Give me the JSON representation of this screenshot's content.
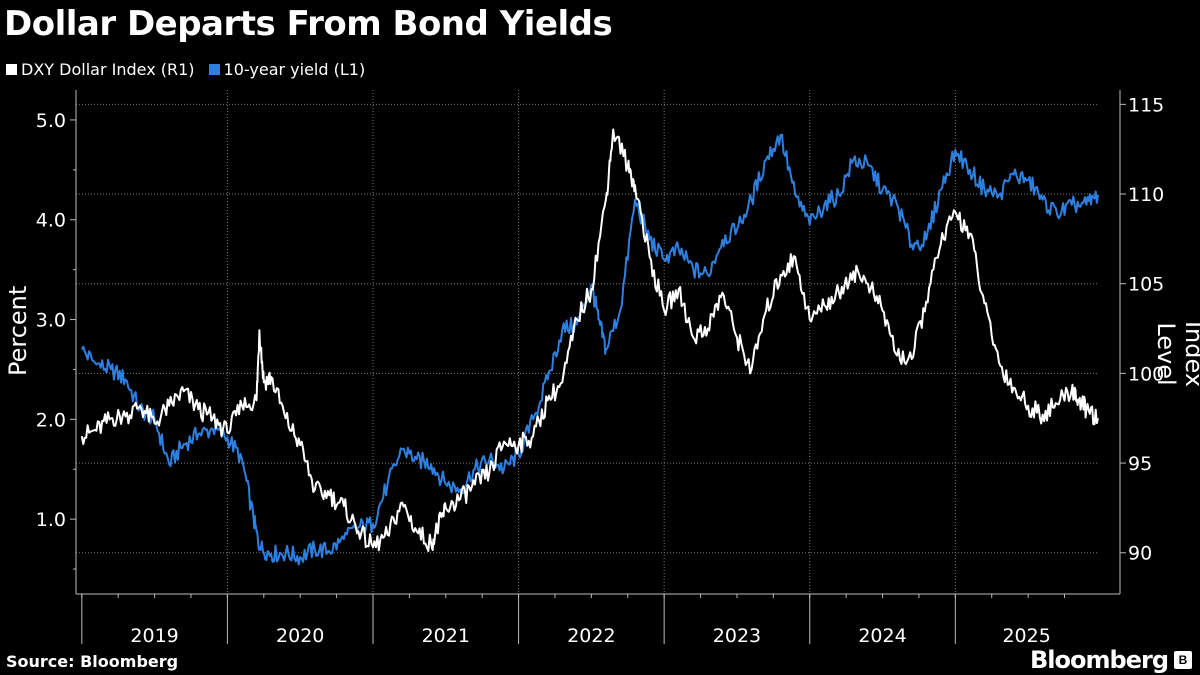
{
  "title": "Dollar Departs From Bond Yields",
  "legend": [
    {
      "label": "DXY Dollar Index (R1)",
      "color": "#ffffff"
    },
    {
      "label": "10-year yield (L1)",
      "color": "#2d7fe0"
    }
  ],
  "source": "Source: Bloomberg",
  "brand": "Bloomberg",
  "chart_data": {
    "type": "line",
    "title": "Dollar Departs From Bond Yields",
    "ylabel_left": "Percent",
    "ylabel_right": "Index Level",
    "ylim_left": [
      0.25,
      5.3
    ],
    "ylim_right": [
      87.7,
      115.8
    ],
    "yticks_left": [
      "1.0",
      "2.0",
      "3.0",
      "4.0",
      "5.0"
    ],
    "yticks_right": [
      "90",
      "95",
      "100",
      "105",
      "110",
      "115"
    ],
    "year_labels": [
      "2019",
      "2020",
      "2021",
      "2022",
      "2023",
      "2024",
      "2025"
    ],
    "x_domain": [
      2018.96,
      2025.98
    ],
    "year_boundaries": [
      2020,
      2021,
      2022,
      2023,
      2024,
      2025
    ],
    "series": [
      {
        "name": "10-year yield (L1)",
        "axis": "left",
        "color": "#2d7fe0",
        "x": [
          2019.0,
          2019.1,
          2019.2,
          2019.3,
          2019.4,
          2019.5,
          2019.6,
          2019.7,
          2019.8,
          2019.9,
          2020.0,
          2020.1,
          2020.18,
          2020.22,
          2020.3,
          2020.4,
          2020.5,
          2020.6,
          2020.7,
          2020.8,
          2020.9,
          2021.0,
          2021.1,
          2021.2,
          2021.3,
          2021.4,
          2021.5,
          2021.6,
          2021.7,
          2021.8,
          2021.9,
          2022.0,
          2022.1,
          2022.2,
          2022.3,
          2022.4,
          2022.5,
          2022.55,
          2022.6,
          2022.7,
          2022.8,
          2022.9,
          2023.0,
          2023.1,
          2023.2,
          2023.3,
          2023.4,
          2023.5,
          2023.6,
          2023.7,
          2023.8,
          2023.9,
          2024.0,
          2024.1,
          2024.2,
          2024.3,
          2024.4,
          2024.5,
          2024.6,
          2024.7,
          2024.8,
          2024.9,
          2025.0,
          2025.1,
          2025.2,
          2025.3,
          2025.4,
          2025.5,
          2025.6,
          2025.7,
          2025.8,
          2025.9,
          2025.98
        ],
        "values": [
          2.7,
          2.55,
          2.5,
          2.4,
          2.1,
          2.0,
          1.55,
          1.75,
          1.85,
          1.9,
          1.82,
          1.6,
          1.0,
          0.72,
          0.65,
          0.66,
          0.62,
          0.7,
          0.68,
          0.8,
          0.92,
          0.95,
          1.35,
          1.7,
          1.6,
          1.55,
          1.35,
          1.3,
          1.5,
          1.6,
          1.5,
          1.65,
          2.0,
          2.4,
          2.9,
          2.95,
          3.35,
          3.0,
          2.7,
          3.1,
          4.2,
          3.8,
          3.6,
          3.7,
          3.5,
          3.45,
          3.8,
          3.9,
          4.2,
          4.6,
          4.85,
          4.25,
          3.95,
          4.15,
          4.25,
          4.6,
          4.55,
          4.3,
          4.15,
          3.75,
          3.8,
          4.3,
          4.7,
          4.5,
          4.3,
          4.25,
          4.45,
          4.4,
          4.2,
          4.05,
          4.15,
          4.15,
          4.25
        ]
      },
      {
        "name": "DXY Dollar Index (R1)",
        "axis": "right",
        "color": "#ffffff",
        "x": [
          2019.0,
          2019.1,
          2019.2,
          2019.3,
          2019.4,
          2019.5,
          2019.6,
          2019.7,
          2019.8,
          2019.9,
          2020.0,
          2020.1,
          2020.2,
          2020.22,
          2020.25,
          2020.3,
          2020.4,
          2020.5,
          2020.6,
          2020.7,
          2020.8,
          2020.9,
          2021.0,
          2021.1,
          2021.2,
          2021.3,
          2021.4,
          2021.45,
          2021.5,
          2021.6,
          2021.7,
          2021.8,
          2021.9,
          2022.0,
          2022.1,
          2022.2,
          2022.3,
          2022.4,
          2022.5,
          2022.6,
          2022.65,
          2022.75,
          2022.8,
          2022.9,
          2023.0,
          2023.1,
          2023.2,
          2023.3,
          2023.4,
          2023.5,
          2023.6,
          2023.7,
          2023.8,
          2023.9,
          2024.0,
          2024.1,
          2024.2,
          2024.3,
          2024.4,
          2024.5,
          2024.6,
          2024.7,
          2024.8,
          2024.9,
          2025.0,
          2025.1,
          2025.2,
          2025.3,
          2025.4,
          2025.5,
          2025.6,
          2025.7,
          2025.8,
          2025.85,
          2025.9,
          2025.98
        ],
        "values": [
          96.5,
          96.8,
          97.5,
          97.6,
          98.2,
          97.2,
          98.2,
          99.0,
          98.0,
          97.5,
          96.7,
          98.2,
          98.5,
          102.4,
          99.5,
          99.8,
          97.5,
          96.0,
          93.5,
          93.2,
          92.6,
          91.2,
          90.3,
          91.0,
          92.8,
          91.2,
          90.5,
          91.5,
          92.5,
          93.0,
          93.8,
          94.5,
          96.2,
          96.0,
          96.5,
          98.5,
          99.5,
          103.0,
          104.7,
          109.7,
          113.6,
          111.6,
          110.5,
          106.5,
          103.5,
          104.7,
          102.0,
          102.5,
          104.5,
          102.0,
          100.2,
          103.5,
          105.5,
          106.5,
          103.0,
          103.8,
          104.5,
          105.7,
          105.0,
          103.5,
          101.0,
          100.8,
          104.0,
          107.2,
          109.0,
          107.8,
          103.9,
          100.6,
          99.2,
          98.2,
          97.7,
          98.3,
          99.1,
          98.5,
          98.0,
          97.5
        ]
      }
    ]
  }
}
